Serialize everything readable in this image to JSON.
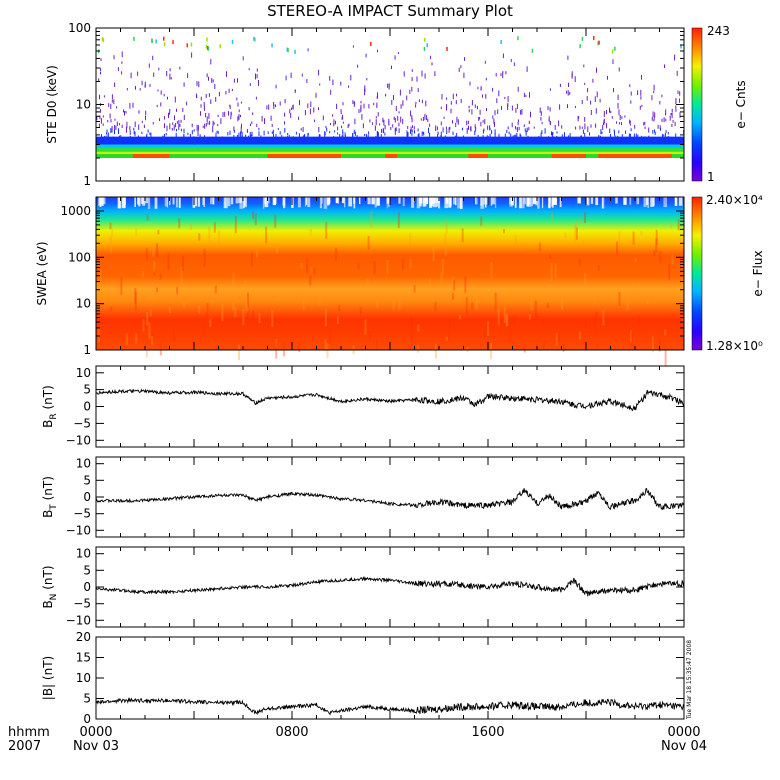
{
  "title": "STEREO-A IMPACT Summary Plot",
  "timestamp": "Tue Mar 18 15:35:47 2008",
  "xaxis": {
    "ticks": [
      "0000",
      "0800",
      "1600",
      "0000"
    ],
    "tick_hours": [
      0,
      8,
      16,
      24
    ],
    "left_label_1": "hhmm",
    "left_label_2": "2007",
    "date_labels": [
      "Nov 03",
      "Nov 04"
    ]
  },
  "colorbars": [
    {
      "label": "e− Cnts",
      "max_label": "243",
      "min_label": "1",
      "scale": "log"
    },
    {
      "label": "e− Flux",
      "max_label": "2.40×10⁴",
      "min_label": "1.28×10⁰",
      "scale": "log"
    }
  ],
  "chart_data": [
    {
      "type": "heatmap",
      "ylabel": "STE D0 (keV)",
      "yscale": "log",
      "ylim": [
        1,
        100
      ],
      "yticks": [
        "1",
        "10",
        "100"
      ],
      "ytick_values": [
        1,
        10,
        100
      ],
      "x_hours": [
        0,
        24
      ],
      "description_bands": [
        {
          "energy_range_keV": [
            2.0,
            2.3
          ],
          "level": "high (red/orange)"
        },
        {
          "energy_range_keV": [
            2.3,
            3.0
          ],
          "level": "medium (green/yellow)"
        },
        {
          "energy_range_keV": [
            3.0,
            4.5
          ],
          "level": "low (blue)"
        },
        {
          "energy_range_keV": [
            4.5,
            100
          ],
          "level": "sparse counts (purple)"
        }
      ]
    },
    {
      "type": "heatmap",
      "ylabel": "SWEA (eV)",
      "yscale": "log",
      "ylim": [
        1,
        2000
      ],
      "yticks": [
        "1",
        "10",
        "100",
        "1000"
      ],
      "ytick_values": [
        1,
        10,
        100,
        1000
      ],
      "x_hours": [
        0,
        24
      ],
      "description_bands": [
        {
          "energy_range_eV": [
            1,
            20
          ],
          "level": "high (red/orange)"
        },
        {
          "energy_range_eV": [
            20,
            300
          ],
          "level": "high (orange)"
        },
        {
          "energy_range_eV": [
            300,
            800
          ],
          "level": "medium (yellow/green)"
        },
        {
          "energy_range_eV": [
            800,
            2000
          ],
          "level": "low (cyan/blue)"
        }
      ]
    },
    {
      "type": "line",
      "ylabel": "B_R (nT)",
      "ylim": [
        -12,
        12
      ],
      "yticks": [
        "−10",
        "−5",
        "0",
        "5",
        "10"
      ],
      "ytick_values": [
        -10,
        -5,
        0,
        5,
        10
      ],
      "x": [
        0,
        1,
        2,
        3,
        4,
        5,
        6,
        6.5,
        7,
        8,
        8.5,
        9,
        10,
        11,
        12,
        13,
        14,
        15,
        15.5,
        16,
        17,
        18,
        19,
        19.5,
        20,
        21,
        22,
        22.5,
        23,
        23.5,
        24
      ],
      "values": [
        4,
        4.5,
        4.5,
        4,
        4.2,
        3.8,
        3.8,
        1,
        2.5,
        2.8,
        3.2,
        3.5,
        1.5,
        2.2,
        1.5,
        2,
        1.5,
        2.5,
        0.5,
        3,
        2.5,
        2,
        1.5,
        0.5,
        0.2,
        1.5,
        -0.5,
        4,
        3.5,
        2.5,
        1
      ]
    },
    {
      "type": "line",
      "ylabel": "B_T (nT)",
      "ylim": [
        -12,
        12
      ],
      "yticks": [
        "−10",
        "−5",
        "0",
        "5",
        "10"
      ],
      "ytick_values": [
        -10,
        -5,
        0,
        5,
        10
      ],
      "x": [
        0,
        1,
        2,
        3,
        4,
        5,
        6,
        6.5,
        7,
        8,
        9,
        10,
        11,
        12,
        13,
        14,
        15,
        16,
        17,
        17.5,
        18,
        18.5,
        19,
        20,
        20.5,
        21,
        22,
        22.5,
        23,
        24
      ],
      "values": [
        -1,
        -1.2,
        -1,
        -0.5,
        0,
        0.5,
        0.5,
        -1,
        0,
        1,
        0.5,
        -0.5,
        -1,
        -2,
        -2.5,
        -1.5,
        -2.5,
        -2.5,
        -1.5,
        2,
        -2,
        0.5,
        -3,
        -1.5,
        1.5,
        -3,
        -1,
        2,
        -3,
        -2.5
      ]
    },
    {
      "type": "line",
      "ylabel": "B_N (nT)",
      "ylim": [
        -12,
        12
      ],
      "yticks": [
        "−10",
        "−5",
        "0",
        "5",
        "10"
      ],
      "ytick_values": [
        -10,
        -5,
        0,
        5,
        10
      ],
      "x": [
        0,
        1,
        2,
        3,
        4,
        5,
        6,
        7,
        8,
        9,
        10,
        11,
        12,
        13,
        14,
        15,
        16,
        17,
        18,
        19,
        19.5,
        20,
        21,
        22,
        23,
        24
      ],
      "values": [
        -0.5,
        -1,
        -1.5,
        -1.5,
        -1,
        -0.5,
        0,
        0,
        0.5,
        1.5,
        2,
        2.5,
        2,
        1,
        1,
        0.5,
        0,
        1,
        0,
        -1,
        2,
        -2,
        -1,
        -1,
        1,
        1
      ]
    },
    {
      "type": "line",
      "ylabel": "|B| (nT)",
      "ylim": [
        0,
        20
      ],
      "yticks": [
        "0",
        "5",
        "10",
        "15",
        "20"
      ],
      "ytick_values": [
        0,
        5,
        10,
        15,
        20
      ],
      "x": [
        0,
        1,
        2,
        3,
        4,
        5,
        6,
        6.5,
        7,
        8,
        9,
        9.5,
        10,
        11,
        12,
        13,
        14,
        15,
        16,
        17,
        18,
        19,
        20,
        21,
        22,
        23,
        24
      ],
      "values": [
        4,
        4.5,
        4.5,
        4.5,
        4.2,
        4,
        4,
        1.5,
        2.5,
        3,
        3.5,
        1.5,
        2,
        3,
        2.5,
        2,
        2.5,
        3,
        3,
        3.5,
        3,
        3,
        4,
        4,
        3,
        3.5,
        3
      ]
    }
  ]
}
